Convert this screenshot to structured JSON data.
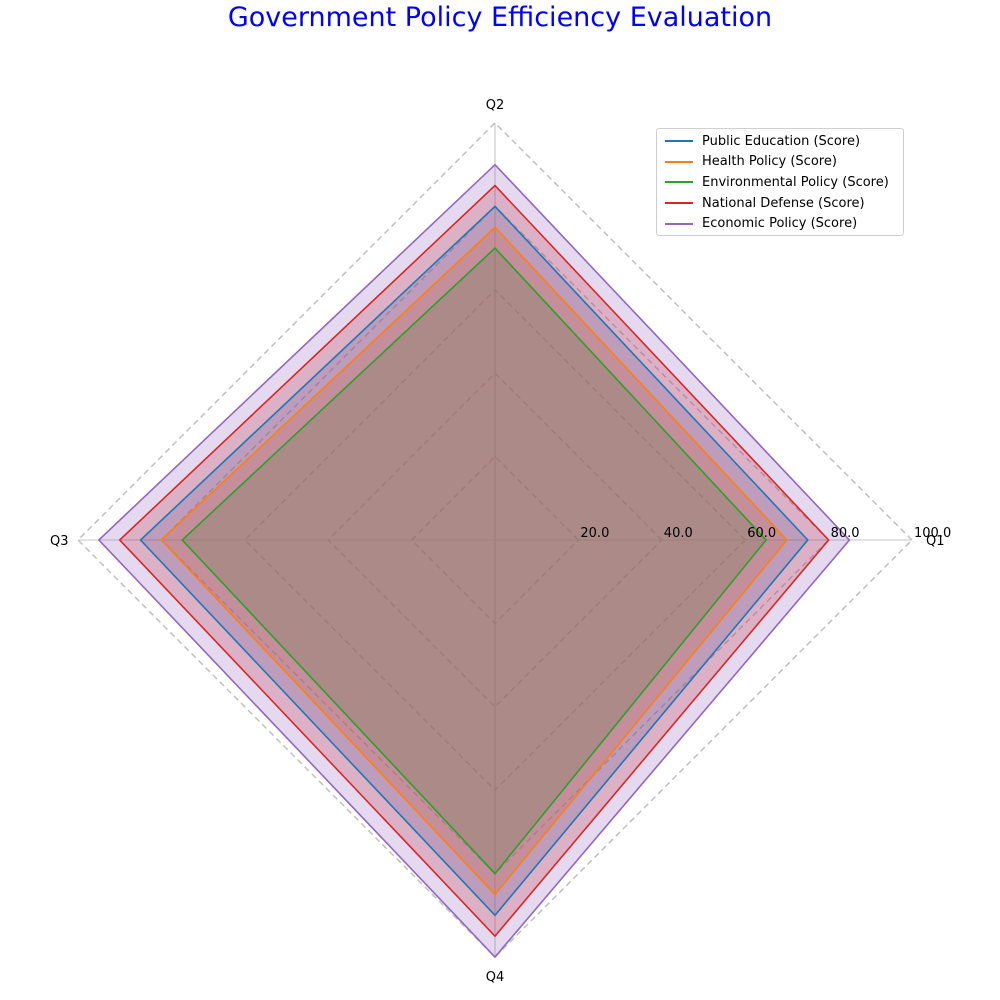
{
  "chart_data": {
    "type": "radar",
    "title": "Government Policy Efficiency Evaluation",
    "categories": [
      "Q1",
      "Q2",
      "Q3",
      "Q4"
    ],
    "rlim": [
      0,
      100
    ],
    "rticks": [
      "20.0",
      "40.0",
      "60.0",
      "80.0",
      "100.0"
    ],
    "rtick_values": [
      20,
      40,
      60,
      80,
      100
    ],
    "grid": true,
    "legend_position": "top-right",
    "series": [
      {
        "name": "Public Education (Score)",
        "color": "#1f77b4",
        "values": [
          75,
          80,
          85,
          90
        ]
      },
      {
        "name": "Health Policy (Score)",
        "color": "#ff7f0e",
        "values": [
          70,
          75,
          80,
          85
        ]
      },
      {
        "name": "Environmental Policy (Score)",
        "color": "#2ca02c",
        "values": [
          65,
          70,
          75,
          80
        ]
      },
      {
        "name": "National Defense (Score)",
        "color": "#d62728",
        "values": [
          80,
          85,
          90,
          95
        ]
      },
      {
        "name": "Economic Policy (Score)",
        "color": "#9467bd",
        "values": [
          85,
          90,
          95,
          100
        ]
      }
    ]
  }
}
